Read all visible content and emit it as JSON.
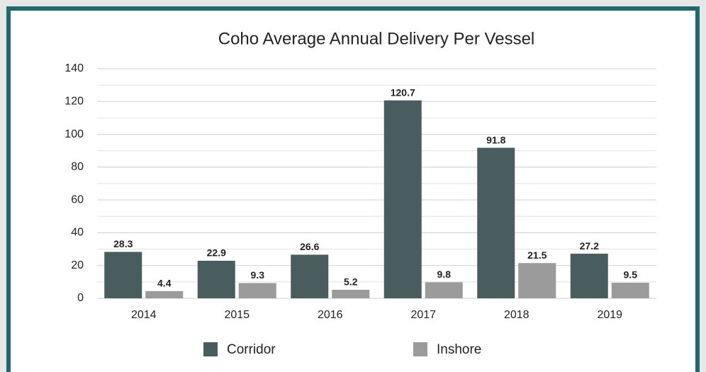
{
  "chart_data": {
    "type": "bar",
    "title": "Coho Average Annual Delivery Per Vessel",
    "categories": [
      "2014",
      "2015",
      "2016",
      "2017",
      "2018",
      "2019"
    ],
    "series": [
      {
        "name": "Corridor",
        "color": "#4a5d5e",
        "values": [
          28.3,
          22.9,
          26.6,
          120.7,
          91.8,
          27.2
        ]
      },
      {
        "name": "Inshore",
        "color": "#9b9b9b",
        "values": [
          4.4,
          9.3,
          5.2,
          9.8,
          21.5,
          9.5
        ]
      }
    ],
    "ylim": [
      0,
      140
    ],
    "yticks": [
      0,
      20,
      40,
      60,
      80,
      100,
      120,
      140
    ],
    "yminorticks": [
      10,
      30,
      50,
      70,
      90,
      110,
      130
    ],
    "grid": true,
    "legend": "bottom"
  }
}
